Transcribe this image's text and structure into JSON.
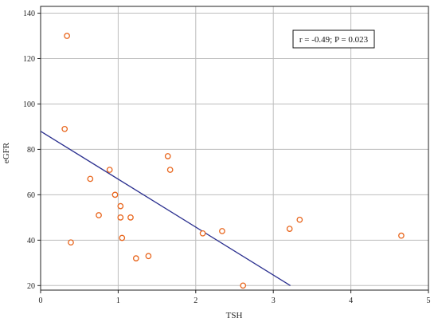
{
  "chart_data": {
    "type": "scatter",
    "xlabel": "TSH",
    "ylabel": "eGFR",
    "xlim": [
      0,
      5
    ],
    "ylim": [
      18,
      143
    ],
    "xticks": [
      0,
      1,
      2,
      3,
      4,
      5
    ],
    "yticks": [
      20,
      40,
      60,
      80,
      100,
      120,
      140
    ],
    "grid": true,
    "annotation": "r = -0.49; P = 0.023",
    "marker_color": "#e8651c",
    "line_color": "#2a2f8f",
    "points": [
      {
        "x": 0.34,
        "y": 130
      },
      {
        "x": 0.31,
        "y": 89
      },
      {
        "x": 0.39,
        "y": 39
      },
      {
        "x": 0.64,
        "y": 67
      },
      {
        "x": 0.75,
        "y": 51
      },
      {
        "x": 0.89,
        "y": 71
      },
      {
        "x": 0.96,
        "y": 60
      },
      {
        "x": 1.03,
        "y": 55
      },
      {
        "x": 1.03,
        "y": 50
      },
      {
        "x": 1.05,
        "y": 41
      },
      {
        "x": 1.16,
        "y": 50
      },
      {
        "x": 1.23,
        "y": 32
      },
      {
        "x": 1.39,
        "y": 33
      },
      {
        "x": 1.64,
        "y": 77
      },
      {
        "x": 1.67,
        "y": 71
      },
      {
        "x": 2.09,
        "y": 43
      },
      {
        "x": 2.34,
        "y": 44
      },
      {
        "x": 2.61,
        "y": 20
      },
      {
        "x": 3.21,
        "y": 45
      },
      {
        "x": 3.34,
        "y": 49
      },
      {
        "x": 4.65,
        "y": 42
      }
    ],
    "regression_line": {
      "x": [
        0,
        3.22
      ],
      "y": [
        88,
        20
      ]
    }
  }
}
